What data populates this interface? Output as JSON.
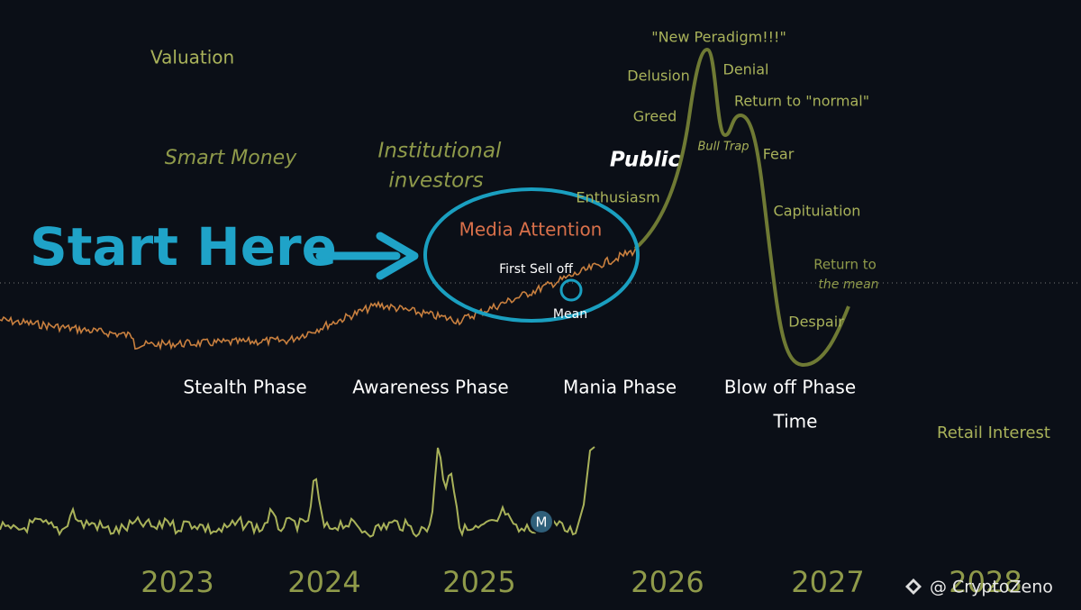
{
  "axis": {
    "y_label": "Valuation",
    "x_label": "Time",
    "secondary_label": "Retail Interest"
  },
  "call_to_action": "Start Here",
  "groups": [
    "Smart Money",
    "Institutional",
    "investors",
    "Public"
  ],
  "stages": [
    "Media Attention",
    "First Sell off",
    "Mean",
    "Enthusiasm",
    "Greed",
    "Delusion",
    "\"New Peradigm!!!\"",
    "Denial",
    "Bull Trap",
    "Return to \"normal\"",
    "Fear",
    "Capituiation",
    "Return to",
    "the mean",
    "Despair"
  ],
  "phases": [
    "Stealth Phase",
    "Awareness Phase",
    "Mania Phase",
    "Blow off Phase"
  ],
  "years": [
    "2023",
    "2024",
    "2025",
    "2026",
    "2027",
    "2028"
  ],
  "badge": "M",
  "watermark": "@ CryptoZeno"
}
